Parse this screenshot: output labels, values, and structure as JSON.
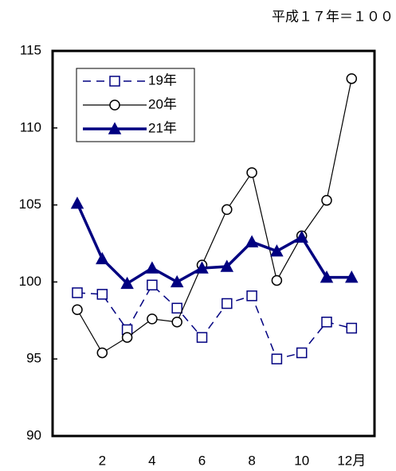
{
  "chart_data": {
    "type": "line",
    "annotation": "平成１７年＝１００",
    "categories": [
      null,
      "2",
      null,
      "4",
      null,
      "6",
      null,
      "8",
      null,
      "10",
      null,
      "12月"
    ],
    "series": [
      {
        "name": "19年",
        "color": "#000080",
        "line_style": "dashed",
        "line_width": 1.5,
        "marker": "square",
        "values": [
          99.3,
          99.2,
          96.9,
          99.8,
          98.3,
          96.4,
          98.6,
          99.1,
          95.0,
          95.4,
          97.4,
          97.0
        ]
      },
      {
        "name": "20年",
        "color": "#000000",
        "line_style": "solid",
        "line_width": 1.2,
        "marker": "circle",
        "values": [
          98.2,
          95.4,
          96.4,
          97.6,
          97.4,
          101.1,
          104.7,
          107.1,
          100.1,
          103.0,
          105.3,
          113.2
        ]
      },
      {
        "name": "21年",
        "color": "#000080",
        "line_style": "solid",
        "line_width": 3.5,
        "marker": "triangle",
        "values": [
          105.1,
          101.5,
          99.9,
          100.9,
          100.0,
          100.9,
          101.0,
          102.6,
          102.0,
          102.9,
          100.3,
          100.3
        ]
      }
    ],
    "ylim": [
      90,
      115
    ],
    "yticks": [
      90,
      95,
      100,
      105,
      110,
      115
    ],
    "grid": false,
    "legend": "upper-left"
  }
}
